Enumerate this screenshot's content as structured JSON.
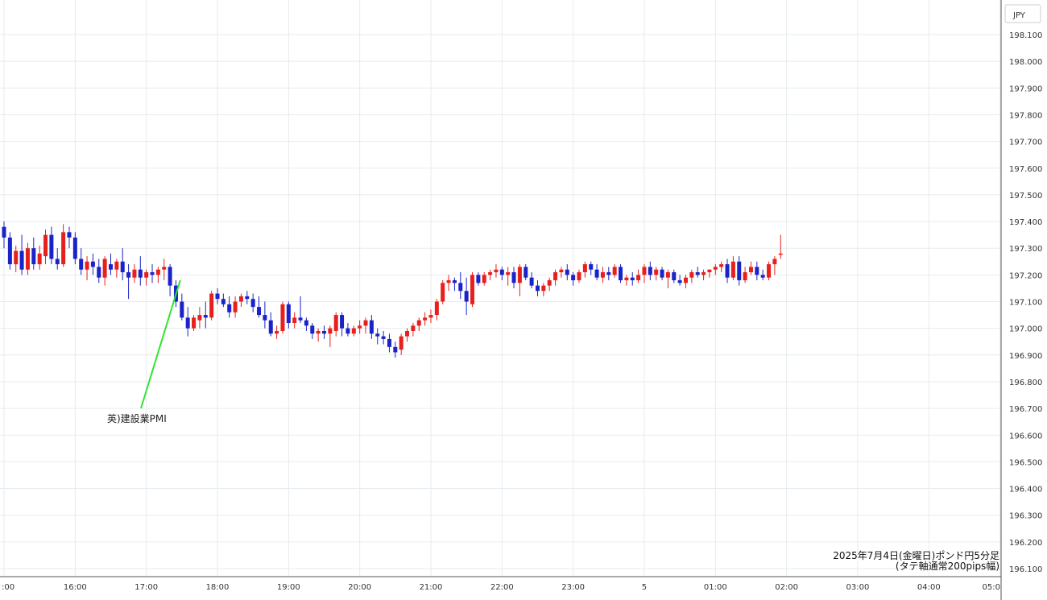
{
  "chart_data": {
    "type": "candlestick",
    "currency_label": "JPY",
    "caption_line1": "2025年7月4日(金曜日)ポンド円5分足",
    "caption_line2": "(タテ軸通常200pips幅)",
    "annotation": {
      "text": "英)建設業PMI",
      "time": "17:30"
    },
    "ylim": [
      196.1,
      198.1
    ],
    "y_ticks": [
      "198.100",
      "198.000",
      "197.900",
      "197.800",
      "197.700",
      "197.600",
      "197.500",
      "197.400",
      "197.300",
      "197.200",
      "197.100",
      "197.000",
      "196.900",
      "196.800",
      "196.700",
      "196.600",
      "196.500",
      "196.400",
      "196.300",
      "196.200",
      "196.100"
    ],
    "x_ticks": [
      ":00",
      "16:00",
      "17:00",
      "18:00",
      "19:00",
      "20:00",
      "21:00",
      "22:00",
      "23:00",
      "5",
      "01:00",
      "02:00",
      "03:00",
      "04:00",
      "05:0"
    ],
    "grid": true,
    "up_color": "#e8201c",
    "down_color": "#1a23c9",
    "annotation_line_color": "#2ee62e",
    "candles": [
      [
        197.38,
        197.4,
        197.3,
        197.34
      ],
      [
        197.34,
        197.36,
        197.22,
        197.24
      ],
      [
        197.24,
        197.31,
        197.21,
        197.29
      ],
      [
        197.29,
        197.35,
        197.2,
        197.22
      ],
      [
        197.22,
        197.32,
        197.2,
        197.3
      ],
      [
        197.3,
        197.34,
        197.22,
        197.24
      ],
      [
        197.24,
        197.31,
        197.22,
        197.28
      ],
      [
        197.27,
        197.37,
        197.24,
        197.35
      ],
      [
        197.35,
        197.38,
        197.24,
        197.26
      ],
      [
        197.26,
        197.3,
        197.22,
        197.24
      ],
      [
        197.24,
        197.39,
        197.23,
        197.36
      ],
      [
        197.36,
        197.38,
        197.3,
        197.34
      ],
      [
        197.34,
        197.36,
        197.24,
        197.26
      ],
      [
        197.26,
        197.3,
        197.2,
        197.22
      ],
      [
        197.22,
        197.27,
        197.18,
        197.25
      ],
      [
        197.25,
        197.28,
        197.2,
        197.23
      ],
      [
        197.23,
        197.26,
        197.17,
        197.19
      ],
      [
        197.19,
        197.27,
        197.16,
        197.26
      ],
      [
        197.24,
        197.28,
        197.2,
        197.22
      ],
      [
        197.22,
        197.26,
        197.19,
        197.25
      ],
      [
        197.25,
        197.3,
        197.18,
        197.21
      ],
      [
        197.21,
        197.24,
        197.11,
        197.19
      ],
      [
        197.19,
        197.24,
        197.17,
        197.22
      ],
      [
        197.22,
        197.27,
        197.16,
        197.19
      ],
      [
        197.19,
        197.22,
        197.16,
        197.21
      ],
      [
        197.21,
        197.24,
        197.17,
        197.2
      ],
      [
        197.2,
        197.23,
        197.17,
        197.22
      ],
      [
        197.22,
        197.26,
        197.18,
        197.23
      ],
      [
        197.23,
        197.24,
        197.12,
        197.16
      ],
      [
        197.16,
        197.18,
        197.08,
        197.1
      ],
      [
        197.1,
        197.13,
        197.03,
        197.04
      ],
      [
        197.04,
        197.08,
        196.97,
        197.0
      ],
      [
        197.0,
        197.05,
        196.99,
        197.04
      ],
      [
        197.03,
        197.08,
        197.0,
        197.05
      ],
      [
        197.05,
        197.1,
        197.0,
        197.04
      ],
      [
        197.04,
        197.14,
        197.03,
        197.13
      ],
      [
        197.13,
        197.15,
        197.09,
        197.11
      ],
      [
        197.11,
        197.13,
        197.08,
        197.09
      ],
      [
        197.09,
        197.12,
        197.04,
        197.06
      ],
      [
        197.06,
        197.12,
        197.04,
        197.1
      ],
      [
        197.1,
        197.13,
        197.08,
        197.12
      ],
      [
        197.12,
        197.14,
        197.09,
        197.11
      ],
      [
        197.11,
        197.13,
        197.06,
        197.08
      ],
      [
        197.08,
        197.12,
        197.04,
        197.05
      ],
      [
        197.05,
        197.1,
        197.0,
        197.03
      ],
      [
        197.03,
        197.06,
        196.97,
        196.98
      ],
      [
        196.98,
        197.01,
        196.96,
        196.99
      ],
      [
        196.99,
        197.1,
        196.98,
        197.09
      ],
      [
        197.09,
        197.1,
        197.0,
        197.02
      ],
      [
        197.02,
        197.06,
        197.0,
        197.04
      ],
      [
        197.04,
        197.12,
        197.02,
        197.03
      ],
      [
        197.03,
        197.04,
        196.99,
        197.01
      ],
      [
        197.01,
        197.02,
        196.96,
        196.98
      ],
      [
        196.98,
        197.0,
        196.95,
        196.99
      ],
      [
        196.99,
        197.01,
        196.96,
        196.98
      ],
      [
        196.98,
        197.01,
        196.93,
        197.0
      ],
      [
        196.99,
        197.06,
        196.97,
        197.05
      ],
      [
        197.05,
        197.06,
        196.97,
        197.0
      ],
      [
        197.0,
        197.02,
        196.97,
        196.98
      ],
      [
        196.98,
        197.01,
        196.97,
        197.0
      ],
      [
        197.0,
        197.03,
        196.98,
        197.01
      ],
      [
        197.01,
        197.04,
        196.98,
        197.03
      ],
      [
        197.03,
        197.05,
        196.96,
        196.98
      ],
      [
        196.98,
        197.0,
        196.94,
        196.97
      ],
      [
        196.97,
        196.99,
        196.94,
        196.96
      ],
      [
        196.96,
        196.98,
        196.91,
        196.93
      ],
      [
        196.93,
        196.95,
        196.89,
        196.91
      ],
      [
        196.92,
        196.98,
        196.9,
        196.97
      ],
      [
        196.97,
        197.0,
        196.95,
        196.99
      ],
      [
        196.99,
        197.02,
        196.97,
        197.01
      ],
      [
        197.01,
        197.04,
        196.99,
        197.03
      ],
      [
        197.03,
        197.06,
        197.01,
        197.04
      ],
      [
        197.04,
        197.07,
        197.02,
        197.05
      ],
      [
        197.05,
        197.11,
        197.03,
        197.1
      ],
      [
        197.1,
        197.18,
        197.09,
        197.17
      ],
      [
        197.17,
        197.2,
        197.14,
        197.18
      ],
      [
        197.18,
        197.19,
        197.14,
        197.17
      ],
      [
        197.17,
        197.21,
        197.11,
        197.14
      ],
      [
        197.14,
        197.19,
        197.05,
        197.1
      ],
      [
        197.09,
        197.21,
        197.08,
        197.2
      ],
      [
        197.2,
        197.21,
        197.16,
        197.17
      ],
      [
        197.17,
        197.21,
        197.16,
        197.2
      ],
      [
        197.2,
        197.22,
        197.18,
        197.21
      ],
      [
        197.21,
        197.24,
        197.19,
        197.22
      ],
      [
        197.22,
        197.23,
        197.18,
        197.2
      ],
      [
        197.2,
        197.23,
        197.16,
        197.21
      ],
      [
        197.21,
        197.23,
        197.15,
        197.17
      ],
      [
        197.17,
        197.24,
        197.12,
        197.23
      ],
      [
        197.23,
        197.24,
        197.18,
        197.19
      ],
      [
        197.19,
        197.21,
        197.15,
        197.16
      ],
      [
        197.16,
        197.18,
        197.12,
        197.14
      ],
      [
        197.14,
        197.17,
        197.12,
        197.16
      ],
      [
        197.16,
        197.19,
        197.14,
        197.18
      ],
      [
        197.18,
        197.22,
        197.16,
        197.21
      ],
      [
        197.21,
        197.23,
        197.19,
        197.22
      ],
      [
        197.22,
        197.24,
        197.18,
        197.2
      ],
      [
        197.2,
        197.21,
        197.16,
        197.18
      ],
      [
        197.18,
        197.22,
        197.17,
        197.21
      ],
      [
        197.21,
        197.25,
        197.19,
        197.24
      ],
      [
        197.24,
        197.25,
        197.2,
        197.22
      ],
      [
        197.22,
        197.24,
        197.18,
        197.19
      ],
      [
        197.19,
        197.23,
        197.17,
        197.21
      ],
      [
        197.21,
        197.23,
        197.18,
        197.2
      ],
      [
        197.2,
        197.24,
        197.19,
        197.23
      ],
      [
        197.23,
        197.24,
        197.17,
        197.18
      ],
      [
        197.18,
        197.2,
        197.16,
        197.19
      ],
      [
        197.19,
        197.21,
        197.16,
        197.18
      ],
      [
        197.18,
        197.22,
        197.17,
        197.2
      ],
      [
        197.2,
        197.24,
        197.17,
        197.23
      ],
      [
        197.23,
        197.25,
        197.18,
        197.2
      ],
      [
        197.2,
        197.23,
        197.18,
        197.22
      ],
      [
        197.22,
        197.23,
        197.18,
        197.19
      ],
      [
        197.19,
        197.22,
        197.15,
        197.21
      ],
      [
        197.21,
        197.22,
        197.17,
        197.18
      ],
      [
        197.18,
        197.2,
        197.16,
        197.17
      ],
      [
        197.17,
        197.2,
        197.15,
        197.19
      ],
      [
        197.19,
        197.22,
        197.17,
        197.21
      ],
      [
        197.21,
        197.23,
        197.19,
        197.2
      ],
      [
        197.2,
        197.22,
        197.18,
        197.21
      ],
      [
        197.21,
        197.22,
        197.19,
        197.22
      ],
      [
        197.22,
        197.24,
        197.2,
        197.23
      ],
      [
        197.23,
        197.25,
        197.21,
        197.24
      ],
      [
        197.24,
        197.26,
        197.17,
        197.19
      ],
      [
        197.19,
        197.27,
        197.18,
        197.25
      ],
      [
        197.25,
        197.27,
        197.16,
        197.18
      ],
      [
        197.18,
        197.23,
        197.17,
        197.21
      ],
      [
        197.21,
        197.25,
        197.2,
        197.23
      ],
      [
        197.23,
        197.25,
        197.18,
        197.2
      ],
      [
        197.2,
        197.22,
        197.18,
        197.19
      ],
      [
        197.19,
        197.25,
        197.18,
        197.24
      ],
      [
        197.24,
        197.27,
        197.2,
        197.26
      ],
      [
        197.28,
        197.35,
        197.26,
        197.28
      ]
    ]
  }
}
